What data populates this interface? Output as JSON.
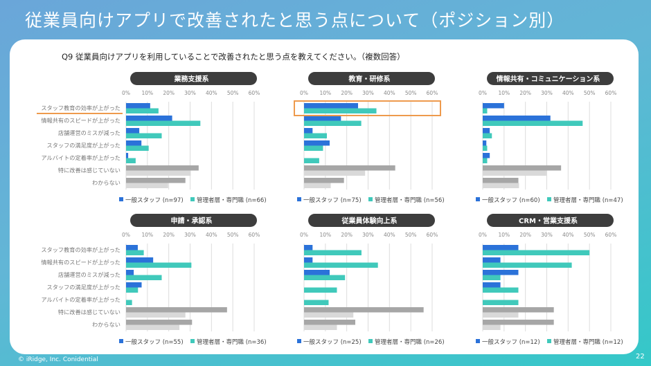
{
  "title": "従業員向けアプリで改善されたと思う点について（ポジション別）",
  "question": "Q9 従業員向けアプリを利用していることで改善されたと思う点を教えてください。（複数回答）",
  "footer": "© iRidge, Inc. Conidential",
  "page_number": "22",
  "colors": {
    "staff": "#2b72d9",
    "manager": "#40c9bb",
    "none_staff": "#a6a6a6",
    "none_manager": "#d9d9d9",
    "pill": "#3d3d3d",
    "highlight": "#ee9a4d"
  },
  "chart_data": [
    {
      "type": "bar",
      "orientation": "horizontal",
      "title": "業務支援系",
      "categories": [
        "スタッフ教育の効率が上がった",
        "情報共有のスピードが上がった",
        "店舗運営のミスが減った",
        "スタッフの満足度が上がった",
        "アルバイトの定着率が上がった",
        "特に改善は感じていない",
        "わからない"
      ],
      "series": [
        {
          "name": "一般スタッフ (n=97)",
          "values": [
            11.3,
            21.6,
            6.2,
            7.2,
            1.0,
            34.0,
            27.8
          ]
        },
        {
          "name": "管理者層・専門職 (n=66)",
          "values": [
            15.2,
            34.8,
            16.7,
            10.6,
            4.5,
            30.3,
            19.7
          ]
        }
      ],
      "xlim": [
        0,
        60
      ],
      "ticks": [
        "0%",
        "10%",
        "20%",
        "30%",
        "40%",
        "50%",
        "60%"
      ],
      "highlight": "category-underline",
      "show_category_labels": true
    },
    {
      "type": "bar",
      "orientation": "horizontal",
      "title": "教育・研修系",
      "categories": [
        "スタッフ教育の効率が上がった",
        "情報共有のスピードが上がった",
        "店舗運営のミスが減った",
        "スタッフの満足度が上がった",
        "アルバイトの定着率が上がった",
        "特に改善は感じていない",
        "わからない"
      ],
      "series": [
        {
          "name": "一般スタッフ (n=75)",
          "values": [
            25.3,
            17.3,
            4.0,
            12.0,
            0,
            42.7,
            18.7
          ]
        },
        {
          "name": "管理者層・専門職 (n=56)",
          "values": [
            33.9,
            26.8,
            10.7,
            8.9,
            7.1,
            28.6,
            12.5
          ]
        }
      ],
      "xlim": [
        0,
        60
      ],
      "ticks": [
        "0%",
        "10%",
        "20%",
        "30%",
        "40%",
        "50%",
        "60%"
      ],
      "highlight": "first-row-box",
      "show_category_labels": false
    },
    {
      "type": "bar",
      "orientation": "horizontal",
      "title": "情報共有・コミュニケーション系",
      "categories": [
        "スタッフ教育の効率が上がった",
        "情報共有のスピードが上がった",
        "店舗運営のミスが減った",
        "スタッフの満足度が上がった",
        "アルバイトの定着率が上がった",
        "特に改善は感じていない",
        "わからない"
      ],
      "series": [
        {
          "name": "一般スタッフ (n=60)",
          "values": [
            10.0,
            31.7,
            3.3,
            1.7,
            3.3,
            36.7,
            16.7
          ]
        },
        {
          "name": "管理者層・専門職 (n=47)",
          "values": [
            2.1,
            46.8,
            4.3,
            2.1,
            2.1,
            29.8,
            17.0
          ]
        }
      ],
      "xlim": [
        0,
        60
      ],
      "ticks": [
        "0%",
        "10%",
        "20%",
        "30%",
        "40%",
        "50%",
        "60%"
      ],
      "highlight": "none",
      "show_category_labels": false
    },
    {
      "type": "bar",
      "orientation": "horizontal",
      "title": "申請・承認系",
      "categories": [
        "スタッフ教育の効率が上がった",
        "情報共有のスピードが上がった",
        "店舗運営のミスが減った",
        "スタッフの満足度が上がった",
        "アルバイトの定着率が上がった",
        "特に改善は感じていない",
        "わからない"
      ],
      "series": [
        {
          "name": "一般スタッフ (n=55)",
          "values": [
            5.5,
            12.7,
            3.6,
            7.3,
            0,
            47.3,
            30.9
          ]
        },
        {
          "name": "管理者層・専門職 (n=36)",
          "values": [
            8.3,
            30.6,
            16.7,
            5.6,
            2.8,
            27.8,
            25.0
          ]
        }
      ],
      "xlim": [
        0,
        60
      ],
      "ticks": [
        "0%",
        "10%",
        "20%",
        "30%",
        "40%",
        "50%",
        "60%"
      ],
      "highlight": "none",
      "show_category_labels": true
    },
    {
      "type": "bar",
      "orientation": "horizontal",
      "title": "従業員体験向上系",
      "categories": [
        "スタッフ教育の効率が上がった",
        "情報共有のスピードが上がった",
        "店舗運営のミスが減った",
        "スタッフの満足度が上がった",
        "アルバイトの定着率が上がった",
        "特に改善は感じていない",
        "わからない"
      ],
      "series": [
        {
          "name": "一般スタッフ (n=25)",
          "values": [
            4.0,
            4.0,
            12.0,
            0,
            0,
            56.0,
            24.0
          ]
        },
        {
          "name": "管理者層・専門職 (n=26)",
          "values": [
            26.9,
            34.6,
            19.2,
            15.4,
            11.5,
            23.1,
            15.4
          ]
        }
      ],
      "xlim": [
        0,
        60
      ],
      "ticks": [
        "0%",
        "10%",
        "20%",
        "30%",
        "40%",
        "50%",
        "60%"
      ],
      "highlight": "none",
      "show_category_labels": false
    },
    {
      "type": "bar",
      "orientation": "horizontal",
      "title": "CRM・営業支援系",
      "categories": [
        "スタッフ教育の効率が上がった",
        "情報共有のスピードが上がった",
        "店舗運営のミスが減った",
        "スタッフの満足度が上がった",
        "アルバイトの定着率が上がった",
        "特に改善は感じていない",
        "わからない"
      ],
      "series": [
        {
          "name": "一般スタッフ (n=12)",
          "values": [
            16.7,
            8.3,
            16.7,
            8.3,
            0,
            33.3,
            33.3
          ]
        },
        {
          "name": "管理者層・専門職 (n=12)",
          "values": [
            50.0,
            41.7,
            8.3,
            16.7,
            16.7,
            16.7,
            8.3
          ]
        }
      ],
      "xlim": [
        0,
        60
      ],
      "ticks": [
        "0%",
        "10%",
        "20%",
        "30%",
        "40%",
        "50%",
        "60%"
      ],
      "highlight": "none",
      "show_category_labels": false
    }
  ]
}
